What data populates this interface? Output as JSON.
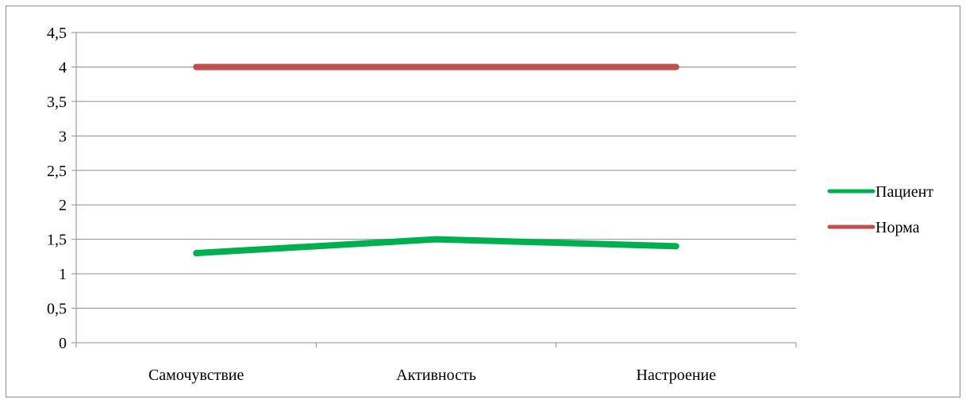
{
  "chart_data": {
    "type": "line",
    "categories": [
      "Самочувствие",
      "Активность",
      "Настроение"
    ],
    "series": [
      {
        "name": "Пациент",
        "values": [
          1.3,
          1.5,
          1.4
        ],
        "color": "#00b050"
      },
      {
        "name": "Норма",
        "values": [
          4,
          4,
          4
        ],
        "color": "#c0504d"
      }
    ],
    "ylim": [
      0,
      4.5
    ],
    "ytick_step": 0.5,
    "ytick_labels": [
      "0",
      "0,5",
      "1",
      "1,5",
      "2",
      "2,5",
      "3",
      "3,5",
      "4",
      "4,5"
    ],
    "grid": true,
    "legend_position": "right",
    "title": "",
    "xlabel": "",
    "ylabel": ""
  }
}
